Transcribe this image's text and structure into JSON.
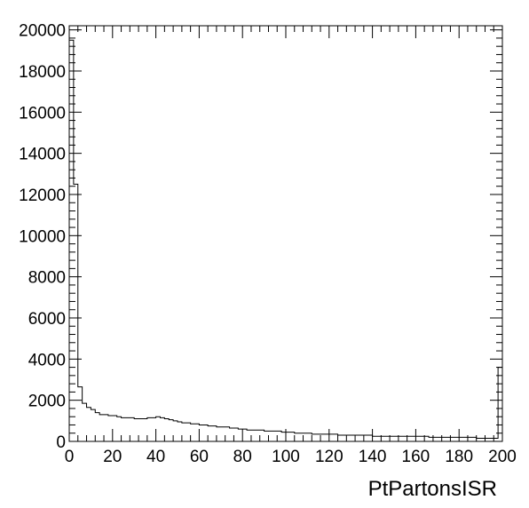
{
  "chart_data": {
    "type": "histogram",
    "title": "",
    "xlabel": "PtPartonsISR",
    "ylabel": "",
    "xlim": [
      0,
      200
    ],
    "ylim": [
      0,
      20200
    ],
    "x_ticks": [
      0,
      20,
      40,
      60,
      80,
      100,
      120,
      140,
      160,
      180,
      200
    ],
    "y_ticks": [
      0,
      2000,
      4000,
      6000,
      8000,
      10000,
      12000,
      14000,
      16000,
      18000,
      20000
    ],
    "bin_width": 2,
    "bin_edges_start": 0,
    "values": [
      19500,
      12500,
      2650,
      1850,
      1650,
      1550,
      1400,
      1300,
      1300,
      1250,
      1250,
      1200,
      1150,
      1150,
      1150,
      1100,
      1100,
      1100,
      1150,
      1150,
      1200,
      1150,
      1100,
      1050,
      1000,
      950,
      900,
      900,
      850,
      850,
      800,
      800,
      750,
      750,
      700,
      700,
      700,
      650,
      650,
      600,
      600,
      550,
      550,
      550,
      550,
      500,
      500,
      500,
      500,
      450,
      450,
      450,
      400,
      400,
      400,
      400,
      350,
      350,
      350,
      350,
      350,
      350,
      300,
      300,
      300,
      300,
      300,
      300,
      300,
      300,
      250,
      250,
      250,
      250,
      250,
      250,
      250,
      250,
      250,
      250,
      250,
      250,
      250,
      200,
      200,
      200,
      200,
      200,
      200,
      200,
      200,
      200,
      200,
      200,
      150,
      150,
      150,
      150,
      150,
      3600
    ],
    "line_color": "#000000",
    "grid": false,
    "legend": "none"
  }
}
